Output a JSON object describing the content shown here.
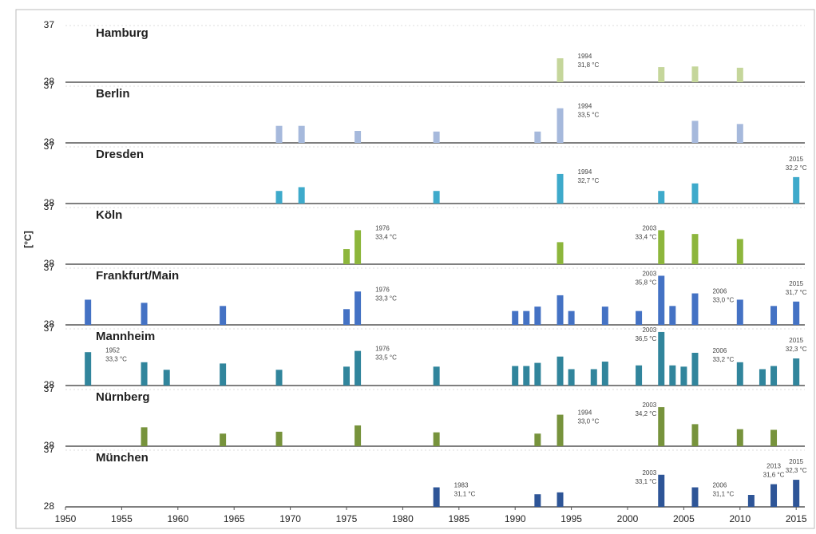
{
  "chart_data": [
    {
      "type": "bar",
      "title": "Hamburg",
      "color": "#c5d69b",
      "xlim": [
        1950,
        2016
      ],
      "ylim": [
        28,
        37
      ],
      "yticks": [
        28,
        37
      ],
      "x": [
        1994,
        2003,
        2006,
        2010
      ],
      "values": [
        31.8,
        30.4,
        30.5,
        30.3
      ],
      "value_labels": [
        "31,8 °C",
        null,
        null,
        null
      ]
    },
    {
      "type": "bar",
      "title": "Berlin",
      "color": "#a6b9dc",
      "xlim": [
        1950,
        2016
      ],
      "ylim": [
        28,
        37
      ],
      "yticks": [
        28,
        37
      ],
      "x": [
        1969,
        1971,
        1976,
        1983,
        1992,
        1994,
        2006,
        2010
      ],
      "values": [
        30.7,
        30.7,
        29.9,
        29.8,
        29.8,
        33.5,
        31.5,
        31.0
      ],
      "value_labels": [
        null,
        null,
        null,
        null,
        null,
        "33,5 °C",
        null,
        null
      ]
    },
    {
      "type": "bar",
      "title": "Dresden",
      "color": "#3eaacb",
      "xlim": [
        1950,
        2016
      ],
      "ylim": [
        28,
        37
      ],
      "yticks": [
        28,
        37
      ],
      "x": [
        1969,
        1971,
        1983,
        1994,
        2003,
        2006,
        2015
      ],
      "values": [
        30.0,
        30.6,
        30.0,
        32.7,
        30.0,
        31.2,
        32.2
      ],
      "value_labels": [
        null,
        null,
        null,
        "32,7 °C",
        null,
        null,
        "32,2 °C"
      ]
    },
    {
      "type": "bar",
      "title": "Köln",
      "color": "#8db63c",
      "xlim": [
        1950,
        2016
      ],
      "ylim": [
        28,
        37
      ],
      "yticks": [
        28,
        37
      ],
      "ylabel": "[°C]",
      "x": [
        1975,
        1976,
        1994,
        2003,
        2006,
        2010
      ],
      "values": [
        30.4,
        33.4,
        31.5,
        33.4,
        32.8,
        32.0
      ],
      "value_labels": [
        null,
        "33,4 °C",
        null,
        "33,4 °C",
        null,
        null
      ]
    },
    {
      "type": "bar",
      "title": "Frankfurt/Main",
      "color": "#4472c4",
      "xlim": [
        1950,
        2016
      ],
      "ylim": [
        28,
        37
      ],
      "yticks": [
        28,
        37
      ],
      "x": [
        1952,
        1957,
        1964,
        1975,
        1976,
        1990,
        1991,
        1992,
        1994,
        1995,
        1998,
        2001,
        2003,
        2004,
        2006,
        2010,
        2013,
        2015
      ],
      "values": [
        32.0,
        31.5,
        31.0,
        30.5,
        33.3,
        30.2,
        30.2,
        30.9,
        32.7,
        30.2,
        30.9,
        30.2,
        35.8,
        31.0,
        33.0,
        32.0,
        31.0,
        31.7
      ],
      "value_labels": [
        null,
        null,
        null,
        null,
        "33,3 °C",
        null,
        null,
        null,
        null,
        null,
        null,
        null,
        "35,8 °C",
        null,
        "33,0 °C",
        null,
        null,
        "31,7 °C"
      ]
    },
    {
      "type": "bar",
      "title": "Mannheim",
      "color": "#31859c",
      "xlim": [
        1950,
        2016
      ],
      "ylim": [
        28,
        37
      ],
      "yticks": [
        28,
        37
      ],
      "x": [
        1952,
        1957,
        1959,
        1964,
        1969,
        1975,
        1976,
        1983,
        1990,
        1991,
        1992,
        1994,
        1995,
        1997,
        1998,
        2001,
        2003,
        2004,
        2005,
        2006,
        2010,
        2012,
        2013,
        2015
      ],
      "values": [
        33.3,
        31.7,
        30.5,
        31.5,
        30.5,
        31.0,
        33.5,
        31.0,
        31.1,
        31.1,
        31.6,
        32.6,
        30.6,
        30.6,
        31.8,
        31.2,
        36.5,
        31.2,
        31.0,
        33.2,
        31.7,
        30.6,
        31.1,
        32.3
      ],
      "value_labels": [
        "33,3 °C",
        null,
        null,
        null,
        null,
        null,
        "33,5 °C",
        null,
        null,
        null,
        null,
        null,
        null,
        null,
        null,
        null,
        "36,5 °C",
        null,
        null,
        "33,2 °C",
        null,
        null,
        null,
        "32,3 °C"
      ]
    },
    {
      "type": "bar",
      "title": "Nürnberg",
      "color": "#77933c",
      "xlim": [
        1950,
        2016
      ],
      "ylim": [
        28,
        37
      ],
      "yticks": [
        28,
        37
      ],
      "x": [
        1957,
        1964,
        1969,
        1976,
        1983,
        1992,
        1994,
        2003,
        2006,
        2010,
        2013
      ],
      "values": [
        31.0,
        30.0,
        30.3,
        31.3,
        30.2,
        30.0,
        33.0,
        34.2,
        31.5,
        30.7,
        30.6
      ],
      "value_labels": [
        null,
        null,
        null,
        null,
        null,
        null,
        "33,0 °C",
        "34,2 °C",
        null,
        null,
        null
      ]
    },
    {
      "type": "bar",
      "title": "München",
      "color": "#2e5597",
      "xlim": [
        1950,
        2016
      ],
      "ylim": [
        28,
        37
      ],
      "yticks": [
        28,
        37
      ],
      "xticks": [
        1950,
        1955,
        1960,
        1965,
        1970,
        1975,
        1980,
        1985,
        1990,
        1995,
        2000,
        2005,
        2010,
        2015
      ],
      "x": [
        1983,
        1992,
        1994,
        2003,
        2006,
        2011,
        2013,
        2015
      ],
      "values": [
        31.1,
        30.0,
        30.3,
        33.1,
        31.1,
        29.9,
        31.6,
        32.3
      ],
      "value_labels": [
        "31,1 °C",
        null,
        null,
        "33,1 °C",
        "31,1 °C",
        null,
        "31,6 °C",
        "32,3 °C"
      ]
    }
  ]
}
